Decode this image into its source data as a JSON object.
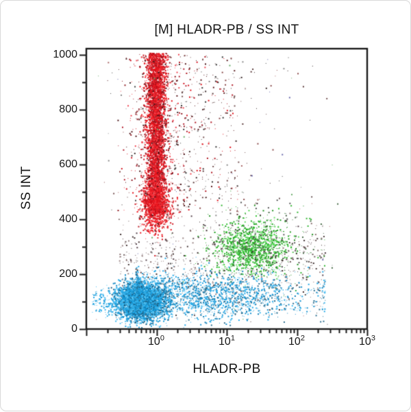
{
  "chart_data": {
    "type": "scatter",
    "title": "[M] HLADR-PB / SS INT",
    "xlabel": "HLADR-PB",
    "ylabel": "SS INT",
    "x_scale": "log10",
    "x_range_log10": [
      -1,
      3
    ],
    "y_range": [
      0,
      1000
    ],
    "grid": false,
    "legend": "none",
    "y_ticks": [
      "0",
      "200",
      "400",
      "600",
      "800",
      "1000"
    ],
    "y_minor_step": 100,
    "x_ticks": [
      {
        "base": "10",
        "exp": "0"
      },
      {
        "base": "10",
        "exp": "1"
      },
      {
        "base": "10",
        "exp": "2"
      },
      {
        "base": "10",
        "exp": "3"
      }
    ],
    "axis_color": "#1a1a1a",
    "populations": [
      {
        "name": "red-band-core",
        "count": 3800,
        "small": 0.25,
        "x": {
          "dist": "lognormal10",
          "mu": -0.015,
          "sigma": 0.07
        },
        "y": {
          "dist": "uniform",
          "min": 425,
          "max": 1008
        },
        "palette": [
          "#ed1c24",
          "#e4121b",
          "#f8353c",
          "#cf0f1a",
          "#a3121c"
        ]
      },
      {
        "name": "red-band-lower-taper",
        "count": 900,
        "small": 0.3,
        "x": {
          "dist": "lognormal10",
          "mu": -0.015,
          "sigma": 0.1
        },
        "y": {
          "dist": "normal",
          "mu": 450,
          "sigma": 45
        },
        "palette": [
          "#ed1c24",
          "#e4121b",
          "#cf0f1a",
          "#f8353c"
        ]
      },
      {
        "name": "red-band-halo",
        "count": 650,
        "small": 0.5,
        "x": {
          "dist": "lognormal10",
          "mu": -0.01,
          "sigma": 0.22
        },
        "y": {
          "dist": "uniform",
          "min": 400,
          "max": 1005
        },
        "palette": [
          "#d41420",
          "#8f1a22",
          "#4a1216",
          "#ef4450",
          "#b32030"
        ]
      },
      {
        "name": "red-sparse-right",
        "count": 150,
        "small": 0.5,
        "x": {
          "dist": "loguniform10",
          "min": 0.25,
          "max": 1.15
        },
        "y": {
          "dist": "uniform",
          "min": 470,
          "max": 1000
        },
        "palette": [
          "#e01019",
          "#b01622",
          "#5a1a1e",
          "#333333"
        ]
      },
      {
        "name": "green-cloud-core",
        "count": 1000,
        "small": 0.3,
        "x": {
          "dist": "lognormal10",
          "mu": 1.33,
          "sigma": 0.26
        },
        "y": {
          "dist": "normal",
          "mu": 302,
          "sigma": 46
        },
        "palette": [
          "#2fc42f",
          "#23ad23",
          "#4fd44f",
          "#189e18",
          "#66dd66"
        ]
      },
      {
        "name": "green-cloud-sparse",
        "count": 380,
        "small": 0.6,
        "x": {
          "dist": "lognormal10",
          "mu": 1.45,
          "sigma": 0.45
        },
        "y": {
          "dist": "normal",
          "mu": 300,
          "sigma": 80
        },
        "palette": [
          "#2fb42f",
          "#1f8f1f",
          "#476b47",
          "#555555"
        ]
      },
      {
        "name": "debris-mid-band",
        "count": 750,
        "small": 0.6,
        "x": {
          "dist": "loguniform10",
          "min": -0.55,
          "max": 2.4
        },
        "y": {
          "dist": "normal",
          "mu": 240,
          "sigma": 80
        },
        "palette": [
          "#6b5858",
          "#4a3a3a",
          "#8a7070",
          "#55404a",
          "#3a2a2a",
          "#9a8585"
        ]
      },
      {
        "name": "debris-upper",
        "count": 300,
        "small": 0.6,
        "x": {
          "dist": "lognormal10",
          "mu": 0.55,
          "sigma": 0.55
        },
        "y": {
          "dist": "uniform",
          "min": 420,
          "max": 1000
        },
        "palette": [
          "#5a3a3a",
          "#775555",
          "#3a2a2a",
          "#8a4a4a"
        ]
      },
      {
        "name": "speckle-noise",
        "count": 120,
        "small": 0.7,
        "x": {
          "dist": "loguniform10",
          "min": -0.9,
          "max": 2.5
        },
        "y": {
          "dist": "uniform",
          "min": 30,
          "max": 1000
        },
        "palette": [
          "#888888",
          "#aa6666",
          "#66aa66",
          "#6666aa",
          "#444444"
        ]
      },
      {
        "name": "cyan-blob-core",
        "count": 4300,
        "small": 0.2,
        "x": {
          "dist": "lognormal10",
          "mu": -0.225,
          "sigma": 0.16
        },
        "y": {
          "dist": "normal",
          "mu": 103,
          "sigma": 32
        },
        "palette": [
          "#21a7e7",
          "#189bd9",
          "#3db7ef",
          "#0d86c3",
          "#5ec6f2",
          "#1b5e82"
        ]
      },
      {
        "name": "cyan-right-tail",
        "count": 1900,
        "small": 0.45,
        "x": {
          "dist": "lognormal10",
          "mu": 0.7,
          "sigma": 0.8,
          "clip_min": -0.3,
          "clip_max": 2.4
        },
        "y": {
          "dist": "normal",
          "mu": 122,
          "sigma": 42
        },
        "palette": [
          "#21a7e7",
          "#1a93cf",
          "#3db7ef",
          "#0f7fb8",
          "#2a6e8f"
        ]
      },
      {
        "name": "cyan-left-sparse",
        "count": 160,
        "small": 0.5,
        "x": {
          "dist": "loguniform10",
          "min": -0.92,
          "max": -0.45
        },
        "y": {
          "dist": "normal",
          "mu": 100,
          "sigma": 28
        },
        "palette": [
          "#21a7e7",
          "#3db7ef",
          "#189bd9"
        ]
      }
    ]
  }
}
